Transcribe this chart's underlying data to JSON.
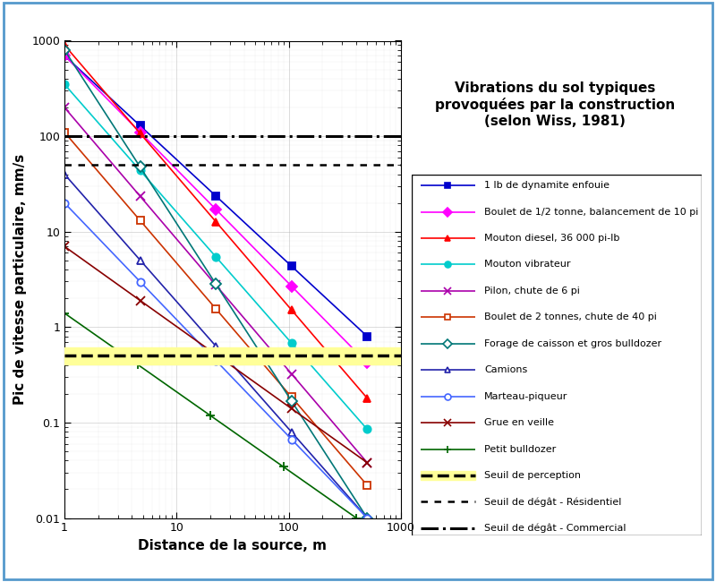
{
  "title": "Vibrations du sol typiques\nprovoquées par la construction\n(selon Wiss, 1981)",
  "xlabel": "Distance de la source, m",
  "ylabel": "Pic de vitesse particulaire, mm/s",
  "xlim": [
    1,
    1000
  ],
  "ylim": [
    0.01,
    1000
  ],
  "threshold_perception": 0.5,
  "threshold_residential": 50,
  "threshold_commercial": 100,
  "series": [
    {
      "label": "1 lb de dynamite enfouie",
      "color": "#0000CC",
      "marker": "s",
      "marker_filled": true,
      "x1": 1,
      "y1": 700,
      "x2": 500,
      "y2": 0.8
    },
    {
      "label": "Boulet de 1/2 tonne, balancement de 10 pi",
      "color": "#FF00FF",
      "marker": "D",
      "marker_filled": true,
      "x1": 1,
      "y1": 700,
      "x2": 500,
      "y2": 0.42
    },
    {
      "label": "Mouton diesel, 36 000 pi-lb",
      "color": "#FF0000",
      "marker": "^",
      "marker_filled": true,
      "x1": 1,
      "y1": 900,
      "x2": 500,
      "y2": 0.18
    },
    {
      "label": "Mouton vibrateur",
      "color": "#00CCCC",
      "marker": "o",
      "marker_filled": true,
      "x1": 1,
      "y1": 350,
      "x2": 500,
      "y2": 0.085
    },
    {
      "label": "Pilon, chute de 6 pi",
      "color": "#AA00AA",
      "marker": "x",
      "marker_filled": false,
      "x1": 1,
      "y1": 200,
      "x2": 500,
      "y2": 0.038
    },
    {
      "label": "Boulet de 2 tonnes, chute de 40 pi",
      "color": "#CC3300",
      "marker": "s",
      "marker_filled": false,
      "x1": 1,
      "y1": 110,
      "x2": 500,
      "y2": 0.022
    },
    {
      "label": "Forage de caisson et gros bulldozer",
      "color": "#007777",
      "marker": "D",
      "marker_filled": false,
      "x1": 1,
      "y1": 800,
      "x2": 500,
      "y2": 0.01
    },
    {
      "label": "Camions",
      "color": "#2222AA",
      "marker": "^",
      "marker_filled": false,
      "x1": 1,
      "y1": 40,
      "x2": 500,
      "y2": 0.01
    },
    {
      "label": "Marteau-piqueur",
      "color": "#4466FF",
      "marker": "o",
      "marker_filled": false,
      "x1": 1,
      "y1": 20,
      "x2": 500,
      "y2": 0.01
    },
    {
      "label": "Grue en veille",
      "color": "#880000",
      "marker": "x",
      "marker_filled": false,
      "x1": 1,
      "y1": 7,
      "x2": 500,
      "y2": 0.038
    },
    {
      "label": "Petit bulldozer",
      "color": "#006600",
      "marker": "+",
      "marker_filled": false,
      "x1": 1,
      "y1": 1.4,
      "x2": 400,
      "y2": 0.01
    }
  ]
}
